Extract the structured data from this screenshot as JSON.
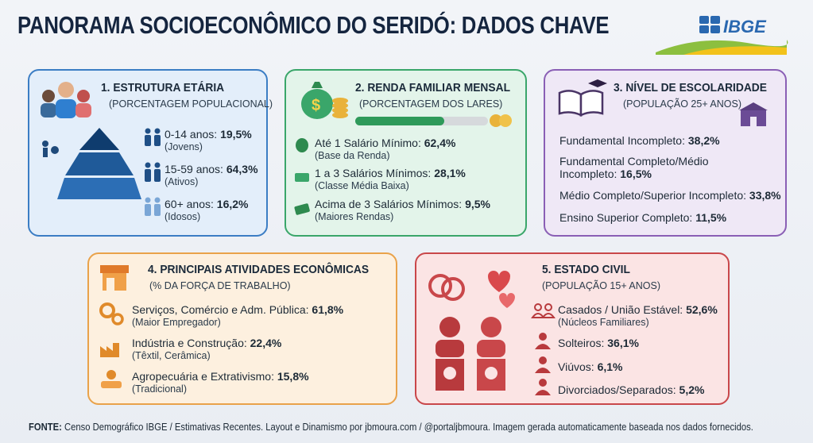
{
  "header": {
    "title": "PANORAMA SOCIOECONÔMICO DO SERIDÓ: DADOS CHAVE",
    "logo": "IBGE"
  },
  "cards": [
    {
      "title": "1. ESTRUTURA ETÁRIA",
      "subtitle": "(PORCENTAGEM POPULACIONAL)",
      "items": [
        {
          "label": "0-14 anos:",
          "value": "19,5%",
          "note": "(Jovens)"
        },
        {
          "label": "15-59 anos:",
          "value": "64,3%",
          "note": "(Ativos)"
        },
        {
          "label": "60+ anos:",
          "value": "16,2%",
          "note": "(Idosos)"
        }
      ]
    },
    {
      "title": "2. RENDA FAMILIAR MENSAL",
      "subtitle": "(PORCENTAGEM DOS LARES)",
      "items": [
        {
          "label": "Até 1 Salário Mínimo:",
          "value": "62,4%",
          "note": "(Base da Renda)"
        },
        {
          "label": "1 a 3 Salários Mínimos:",
          "value": "28,1%",
          "note": "(Classe Média Baixa)"
        },
        {
          "label": "Acima de 3 Salários Mínimos:",
          "value": "9,5%",
          "note": "(Maiores Rendas)"
        }
      ]
    },
    {
      "title": "3. NÍVEL DE ESCOLARIDADE",
      "subtitle": "(POPULAÇÃO 25+ ANOS)",
      "items": [
        {
          "label": "Fundamental Incompleto:",
          "value": "38,2%"
        },
        {
          "label": "Fundamental Completo/Médio Incompleto:",
          "value": "16,5%"
        },
        {
          "label": "Médio Completo/Superior Incompleto:",
          "value": "33,8%"
        },
        {
          "label": "Ensino Superior Completo:",
          "value": "11,5%"
        }
      ]
    },
    {
      "title": "4. PRINCIPAIS ATIVIDADES ECONÔMICAS",
      "subtitle": "(% DA FORÇA DE TRABALHO)",
      "items": [
        {
          "label": "Serviços, Comércio e Adm. Pública:",
          "value": "61,8%",
          "note": "(Maior Empregador)"
        },
        {
          "label": "Indústria e Construção:",
          "value": "22,4%",
          "note": "(Têxtil, Cerâmica)"
        },
        {
          "label": "Agropecuária e Extrativismo:",
          "value": "15,8%",
          "note": "(Tradicional)"
        }
      ]
    },
    {
      "title": "5. ESTADO CIVIL",
      "subtitle": "(POPULAÇÃO 15+ ANOS)",
      "items": [
        {
          "label": "Casados / União Estável:",
          "value": "52,6%",
          "note": "(Núcleos Familiares)"
        },
        {
          "label": "Solteiros:",
          "value": "36,1%"
        },
        {
          "label": "Viúvos:",
          "value": "6,1%"
        },
        {
          "label": "Divorciados/Separados:",
          "value": "5,2%"
        }
      ]
    }
  ],
  "footer": {
    "label": "FONTE:",
    "text": "Censo Demográfico IBGE / Estimativas Recentes. Layout e Dinamismo por jbmoura.com / @portaljbmoura. Imagem gerada automaticamente baseada nos dados fornecidos."
  }
}
